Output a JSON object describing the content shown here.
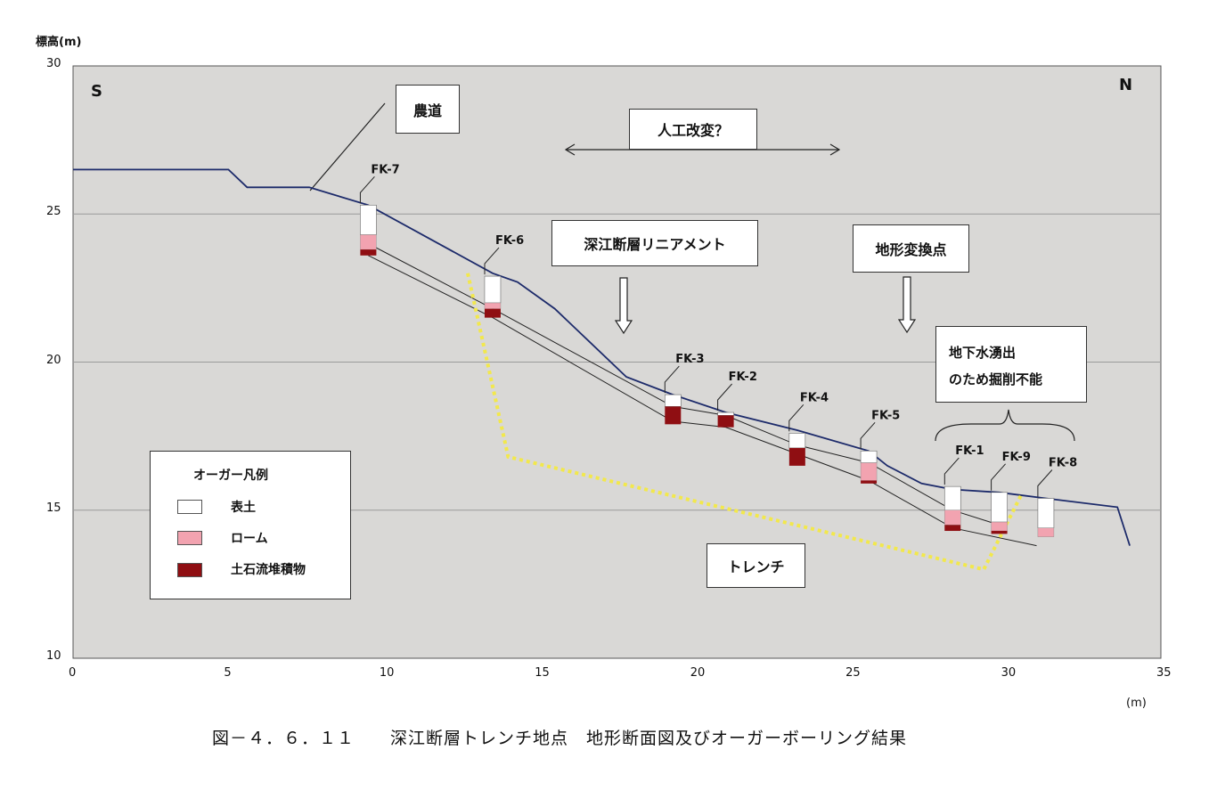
{
  "chart_data": {
    "type": "line",
    "title": "",
    "xlabel": "(m)",
    "ylabel": "標高(m)",
    "xlim": [
      0,
      35
    ],
    "ylim": [
      10,
      30
    ],
    "xticks": [
      "0",
      "5",
      "10",
      "15",
      "20",
      "25",
      "30",
      "35"
    ],
    "yticks": [
      "10",
      "15",
      "20",
      "25",
      "30"
    ],
    "grid": "horizontal",
    "series": [
      {
        "kind": "ground-surface",
        "color": "#1c2a6a",
        "x": [
          0,
          5,
          5.6,
          7.6,
          9.5,
          13.5,
          14.3,
          15.5,
          17.8,
          19.3,
          21,
          23.3,
          25.6,
          26.2,
          27.3,
          28.3,
          29.8,
          31.3,
          33.6,
          34
        ],
        "y": [
          26.5,
          26.5,
          25.9,
          25.9,
          25.3,
          23.0,
          22.7,
          21.8,
          19.5,
          18.9,
          18.3,
          17.7,
          17.0,
          16.5,
          15.9,
          15.7,
          15.6,
          15.4,
          15.1,
          13.8
        ]
      },
      {
        "kind": "layer-boundary-1",
        "color": "#222222",
        "x": [
          9.5,
          13.5,
          19.3,
          21,
          23.3,
          25.6,
          28.3,
          29.8
        ],
        "y": [
          24.0,
          21.8,
          18.5,
          18.2,
          17.2,
          16.6,
          15.0,
          14.5
        ]
      },
      {
        "kind": "layer-boundary-2",
        "color": "#222222",
        "x": [
          9.5,
          13.5,
          19.3,
          21,
          23.3,
          25.6,
          28.3,
          31
        ],
        "y": [
          23.6,
          21.5,
          18.0,
          17.8,
          16.9,
          16.0,
          14.4,
          13.8
        ]
      },
      {
        "kind": "trench-outline",
        "color": "#f2e84c",
        "x": [
          12.7,
          14.0,
          29.3,
          30.5
        ],
        "y": [
          23.0,
          16.8,
          13.0,
          15.5
        ]
      }
    ],
    "boreholes": [
      {
        "name": "FK-7",
        "x": 9.5,
        "top": 25.3,
        "topsoil": 24.3,
        "loam": 23.8,
        "debris": 23.6
      },
      {
        "name": "FK-6",
        "x": 13.5,
        "top": 22.9,
        "topsoil": 22.0,
        "loam": 21.8,
        "debris": 21.5
      },
      {
        "name": "FK-3",
        "x": 19.3,
        "top": 18.9,
        "topsoil": 18.5,
        "loam": 18.5,
        "debris": 17.9
      },
      {
        "name": "FK-2",
        "x": 21.0,
        "top": 18.3,
        "topsoil": 18.2,
        "loam": 18.2,
        "debris": 17.8
      },
      {
        "name": "FK-4",
        "x": 23.3,
        "top": 17.6,
        "topsoil": 17.1,
        "loam": 17.1,
        "debris": 16.5
      },
      {
        "name": "FK-5",
        "x": 25.6,
        "top": 17.0,
        "topsoil": 16.6,
        "loam": 16.0,
        "debris": 15.9
      },
      {
        "name": "FK-1",
        "x": 28.3,
        "top": 15.8,
        "topsoil": 15.0,
        "loam": 14.5,
        "debris": 14.3
      },
      {
        "name": "FK-9",
        "x": 29.8,
        "top": 15.6,
        "topsoil": 14.6,
        "loam": 14.3,
        "debris": 14.2
      },
      {
        "name": "FK-8",
        "x": 31.3,
        "top": 15.4,
        "topsoil": 14.4,
        "loam": 14.1,
        "debris": 14.1
      }
    ],
    "colors": {
      "topsoil": "#ffffff",
      "loam": "#f2a3b0",
      "debris": "#8f0e12",
      "plot_bg": "#d9d8d6"
    }
  },
  "labels": {
    "ylabel": "標高(m)",
    "xunit": "(m)",
    "south": "S",
    "north": "N",
    "farm_road": "農道",
    "artificial": "人工改変？",
    "lineament": "深江断層リニアメント",
    "inflection": "地形変換点",
    "groundwater_1": "地下水湧出",
    "groundwater_2": "のため掘削不能",
    "trench": "トレンチ",
    "caption": "図－４．６．１１　　深江断層トレンチ地点　地形断面図及びオーガーボーリング結果"
  },
  "legend": {
    "title": "オーガー凡例",
    "items": [
      {
        "label": "表土",
        "color": "#ffffff"
      },
      {
        "label": "ローム",
        "color": "#f2a3b0"
      },
      {
        "label": "土石流堆積物",
        "color": "#8f0e12"
      }
    ]
  }
}
